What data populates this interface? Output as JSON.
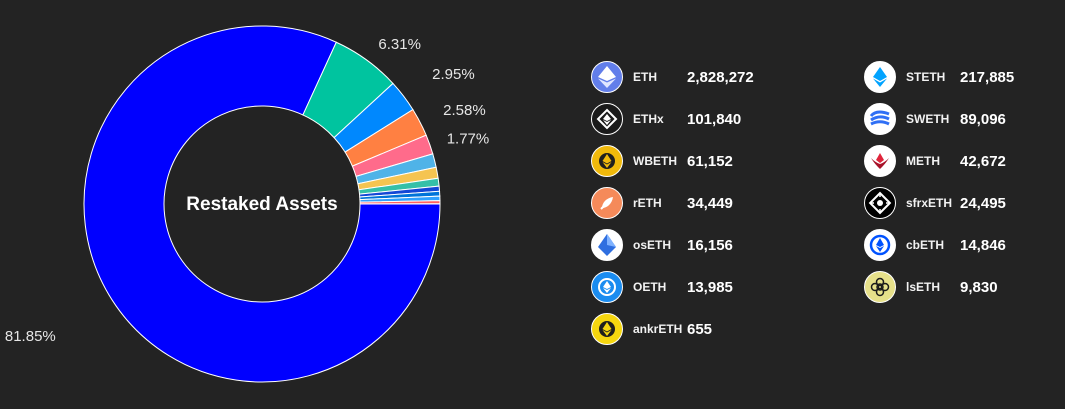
{
  "chart_data": {
    "type": "pie",
    "title": "Restaked Assets",
    "slices": [
      {
        "label": "ETH",
        "value": 2828272,
        "color": "#0000ff"
      },
      {
        "label": "STETH",
        "value": 217885,
        "color": "#00c49f"
      },
      {
        "label": "ETHx",
        "value": 101840,
        "color": "#0088fe"
      },
      {
        "label": "SWETH",
        "value": 89096,
        "color": "#ff8042"
      },
      {
        "label": "WBETH",
        "value": 61152,
        "color": "#ff6b8b"
      },
      {
        "label": "METH",
        "value": 42672,
        "color": "#4fb3e8"
      },
      {
        "label": "rETH",
        "value": 34449,
        "color": "#f5c451"
      },
      {
        "label": "sfrxETH",
        "value": 24495,
        "color": "#35c0a8"
      },
      {
        "label": "osETH",
        "value": 16156,
        "color": "#1447d6"
      },
      {
        "label": "cbETH",
        "value": 14846,
        "color": "#0073d9"
      },
      {
        "label": "OETH",
        "value": 13985,
        "color": "#30a0ff"
      },
      {
        "label": "lsETH",
        "value": 9830,
        "color": "#ff5f5f"
      },
      {
        "label": "ankrETH",
        "value": 655,
        "color": "#f0b90b"
      }
    ],
    "percent_labels": [
      "81.85%",
      "6.31%",
      "2.95%",
      "2.58%",
      "1.77%"
    ]
  },
  "legend": {
    "left": [
      {
        "symbol": "ETH",
        "amount": "2,828,272",
        "icon": "eth-icon",
        "bg": "#627eea"
      },
      {
        "symbol": "ETHx",
        "amount": "101,840",
        "icon": "ethx-icon",
        "bg": "#1a1a1a"
      },
      {
        "symbol": "WBETH",
        "amount": "61,152",
        "icon": "wbeth-icon",
        "bg": "#f0b90b"
      },
      {
        "symbol": "rETH",
        "amount": "34,449",
        "icon": "reth-icon",
        "bg": "#f58a5a"
      },
      {
        "symbol": "osETH",
        "amount": "16,156",
        "icon": "oseth-icon",
        "bg": "#ffffff"
      },
      {
        "symbol": "OETH",
        "amount": "13,985",
        "icon": "oeth-icon",
        "bg": "#1a8cf0"
      },
      {
        "symbol": "ankrETH",
        "amount": "655",
        "icon": "ankreth-icon",
        "bg": "#f5d60f"
      }
    ],
    "right": [
      {
        "symbol": "STETH",
        "amount": "217,885",
        "icon": "steth-icon",
        "bg": "#ffffff"
      },
      {
        "symbol": "SWETH",
        "amount": "89,096",
        "icon": "sweth-icon",
        "bg": "#ffffff"
      },
      {
        "symbol": "METH",
        "amount": "42,672",
        "icon": "meth-icon",
        "bg": "#ffffff"
      },
      {
        "symbol": "sfrxETH",
        "amount": "24,495",
        "icon": "sfrxeth-icon",
        "bg": "#000000"
      },
      {
        "symbol": "cbETH",
        "amount": "14,846",
        "icon": "cbeth-icon",
        "bg": "#ffffff"
      },
      {
        "symbol": "lsETH",
        "amount": "9,830",
        "icon": "lseth-icon",
        "bg": "#e6e08a"
      }
    ]
  }
}
